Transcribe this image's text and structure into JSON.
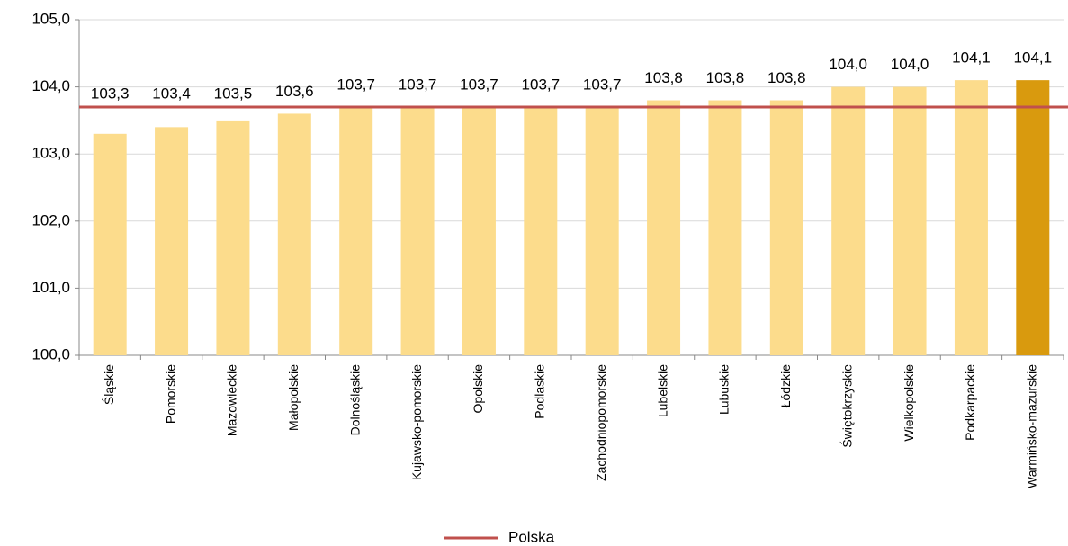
{
  "chart_data": {
    "type": "bar",
    "categories": [
      "Śląskie",
      "Pomorskie",
      "Mazowieckie",
      "Małopolskie",
      "Dolnośląskie",
      "Kujawsko-pomorskie",
      "Opolskie",
      "Podlaskie",
      "Zachodniopomorskie",
      "Lubelskie",
      "Lubuskie",
      "Łódzkie",
      "Świętokrzyskie",
      "Wielkopolskie",
      "Podkarpackie",
      "Warmińsko-mazurskie"
    ],
    "values": [
      103.3,
      103.4,
      103.5,
      103.6,
      103.7,
      103.7,
      103.7,
      103.7,
      103.7,
      103.8,
      103.8,
      103.8,
      104.0,
      104.0,
      104.1,
      104.1
    ],
    "value_labels": [
      "103,3",
      "103,4",
      "103,5",
      "103,6",
      "103,7",
      "103,7",
      "103,7",
      "103,7",
      "103,7",
      "103,8",
      "103,8",
      "103,8",
      "104,0",
      "104,0",
      "104,1",
      "104,1"
    ],
    "colors": [
      "#fcdc8c",
      "#fcdc8c",
      "#fcdc8c",
      "#fcdc8c",
      "#fcdc8c",
      "#fcdc8c",
      "#fcdc8c",
      "#fcdc8c",
      "#fcdc8c",
      "#fcdc8c",
      "#fcdc8c",
      "#fcdc8c",
      "#fcdc8c",
      "#fcdc8c",
      "#fcdc8c",
      "#d99a0e"
    ],
    "reference": {
      "name": "Polska",
      "value": 103.7,
      "color": "#c0504d"
    },
    "ylim": [
      100,
      105
    ],
    "yticks": [
      {
        "value": 100,
        "label": "100,0"
      },
      {
        "value": 101,
        "label": "101,0"
      },
      {
        "value": 102,
        "label": "102,0"
      },
      {
        "value": 103,
        "label": "103,0"
      },
      {
        "value": 104,
        "label": "104,0"
      },
      {
        "value": 105,
        "label": "105,0"
      }
    ],
    "grid": true
  }
}
